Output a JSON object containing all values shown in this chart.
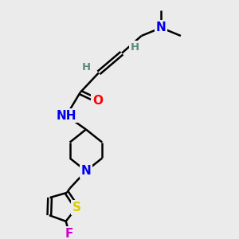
{
  "background_color": "#ebebeb",
  "atom_colors": {
    "C": "#000000",
    "N": "#0000ee",
    "O": "#ff0000",
    "S": "#ddcc00",
    "F": "#cc00cc",
    "H": "#5a8a7a"
  },
  "bond_color": "#000000",
  "bond_width": 1.8,
  "dbo": 0.08,
  "figsize": [
    3.0,
    3.0
  ],
  "dpi": 100
}
